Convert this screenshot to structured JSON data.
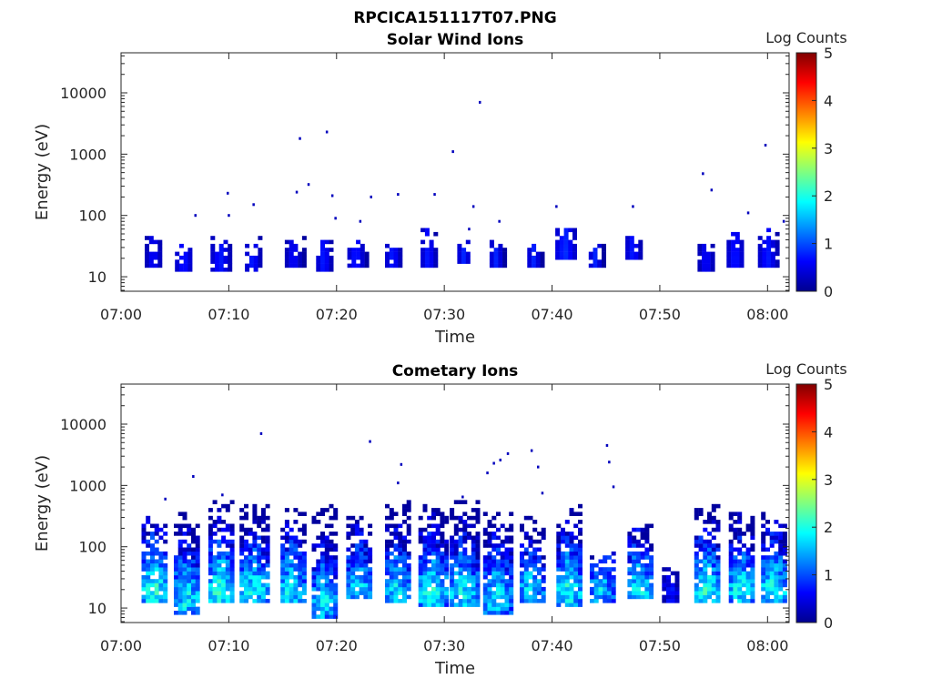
{
  "page": {
    "title": "RPCICA151117T07.PNG"
  },
  "chart_data": [
    {
      "type": "heatmap",
      "title": "Solar Wind Ions",
      "xlabel": "Time",
      "ylabel": "Energy (eV)",
      "x_ticks": [
        "07:00",
        "07:10",
        "07:20",
        "07:30",
        "07:40",
        "07:50",
        "08:00"
      ],
      "x_range_minutes": [
        0,
        62
      ],
      "y_ticks": [
        "10",
        "100",
        "1000",
        "10000"
      ],
      "y_scale": "log",
      "y_range": [
        5.8,
        45000
      ],
      "colorbar_label": "Log Counts",
      "colorbar_ticks": [
        "0",
        "1",
        "2",
        "3",
        "4",
        "5"
      ],
      "colorbar_range": [
        0,
        5
      ],
      "colormap": "jet",
      "blobs": [
        {
          "t": 3.0,
          "w": 1.6,
          "elo": 13,
          "ehi": 42,
          "peak": 0.7,
          "sp": 0.1,
          "n": 0.0
        },
        {
          "t": 5.8,
          "w": 1.6,
          "elo": 11,
          "ehi": 32,
          "peak": 0.8,
          "sp": 0.1,
          "n": 0.0
        },
        {
          "t": 9.2,
          "w": 1.8,
          "elo": 11,
          "ehi": 40,
          "peak": 0.8,
          "sp": 0.1,
          "n": 0.0
        },
        {
          "t": 12.2,
          "w": 1.4,
          "elo": 11,
          "ehi": 40,
          "peak": 0.8,
          "sp": 0.1,
          "n": 0.0
        },
        {
          "t": 16.0,
          "w": 1.6,
          "elo": 13,
          "ehi": 42,
          "peak": 0.7,
          "sp": 0.1,
          "n": 0.0
        },
        {
          "t": 18.8,
          "w": 1.4,
          "elo": 11,
          "ehi": 40,
          "peak": 0.8,
          "sp": 0.1,
          "n": 0.0
        },
        {
          "t": 21.8,
          "w": 1.6,
          "elo": 13,
          "ehi": 36,
          "peak": 0.8,
          "sp": 0.1,
          "n": 0.0
        },
        {
          "t": 25.2,
          "w": 1.4,
          "elo": 13,
          "ehi": 40,
          "peak": 0.8,
          "sp": 0.1,
          "n": 0.0
        },
        {
          "t": 28.5,
          "w": 1.4,
          "elo": 13,
          "ehi": 55,
          "peak": 0.8,
          "sp": 0.1,
          "n": 0.0
        },
        {
          "t": 31.8,
          "w": 1.2,
          "elo": 16,
          "ehi": 36,
          "peak": 0.8,
          "sp": 0.1,
          "n": 0.0
        },
        {
          "t": 34.8,
          "w": 1.2,
          "elo": 13,
          "ehi": 36,
          "peak": 0.8,
          "sp": 0.1,
          "n": 0.0
        },
        {
          "t": 38.3,
          "w": 1.2,
          "elo": 13,
          "ehi": 32,
          "peak": 0.8,
          "sp": 0.1,
          "n": 0.0
        },
        {
          "t": 41.2,
          "w": 1.8,
          "elo": 18,
          "ehi": 60,
          "peak": 0.9,
          "sp": 0.1,
          "n": 0.0
        },
        {
          "t": 44.0,
          "w": 1.2,
          "elo": 14,
          "ehi": 32,
          "peak": 0.8,
          "sp": 0.1,
          "n": 0.0
        },
        {
          "t": 47.5,
          "w": 1.4,
          "elo": 18,
          "ehi": 48,
          "peak": 0.8,
          "sp": 0.1,
          "n": 0.0
        },
        {
          "t": 54.3,
          "w": 1.6,
          "elo": 11,
          "ehi": 40,
          "peak": 0.7,
          "sp": 0.1,
          "n": 0.0
        },
        {
          "t": 57.0,
          "w": 1.6,
          "elo": 13,
          "ehi": 55,
          "peak": 0.8,
          "sp": 0.1,
          "n": 0.0
        },
        {
          "t": 60.0,
          "w": 1.8,
          "elo": 13,
          "ehi": 55,
          "peak": 0.8,
          "sp": 0.1,
          "n": 0.0
        }
      ],
      "specks": [
        {
          "t": 6.8,
          "e": 100
        },
        {
          "t": 9.8,
          "e": 230
        },
        {
          "t": 9.9,
          "e": 100
        },
        {
          "t": 12.2,
          "e": 150
        },
        {
          "t": 16.2,
          "e": 240
        },
        {
          "t": 16.5,
          "e": 1800
        },
        {
          "t": 17.3,
          "e": 320
        },
        {
          "t": 19.0,
          "e": 2300
        },
        {
          "t": 19.5,
          "e": 210
        },
        {
          "t": 19.8,
          "e": 90
        },
        {
          "t": 22.1,
          "e": 80
        },
        {
          "t": 23.1,
          "e": 200
        },
        {
          "t": 25.6,
          "e": 220
        },
        {
          "t": 29.0,
          "e": 220
        },
        {
          "t": 30.7,
          "e": 1100
        },
        {
          "t": 32.6,
          "e": 140
        },
        {
          "t": 33.2,
          "e": 7000
        },
        {
          "t": 32.2,
          "e": 60
        },
        {
          "t": 35.0,
          "e": 80
        },
        {
          "t": 40.3,
          "e": 140
        },
        {
          "t": 47.4,
          "e": 140
        },
        {
          "t": 53.9,
          "e": 480
        },
        {
          "t": 54.7,
          "e": 260
        },
        {
          "t": 58.1,
          "e": 110
        },
        {
          "t": 59.7,
          "e": 1400
        },
        {
          "t": 61.4,
          "e": 80
        }
      ]
    },
    {
      "type": "heatmap",
      "title": "Cometary Ions",
      "xlabel": "Time",
      "ylabel": "Energy (eV)",
      "x_ticks": [
        "07:00",
        "07:10",
        "07:20",
        "07:30",
        "07:40",
        "07:50",
        "08:00"
      ],
      "x_range_minutes": [
        0,
        62
      ],
      "y_ticks": [
        "10",
        "100",
        "1000",
        "10000"
      ],
      "y_scale": "log",
      "y_range": [
        5.8,
        45000
      ],
      "colorbar_label": "Log Counts",
      "colorbar_ticks": [
        "0",
        "1",
        "2",
        "3",
        "4",
        "5"
      ],
      "colorbar_range": [
        0,
        5
      ],
      "colormap": "jet",
      "blobs": [
        {
          "t": 3.0,
          "w": 2.2,
          "elo": 12,
          "ehi": 300,
          "peak": 2.1,
          "sp": 0.55,
          "n": 0.45
        },
        {
          "t": 6.0,
          "w": 2.2,
          "elo": 7,
          "ehi": 350,
          "peak": 1.9,
          "sp": 0.55,
          "n": 0.45
        },
        {
          "t": 9.2,
          "w": 2.2,
          "elo": 12,
          "ehi": 520,
          "peak": 2.1,
          "sp": 0.55,
          "n": 0.45
        },
        {
          "t": 12.3,
          "w": 2.6,
          "elo": 12,
          "ehi": 500,
          "peak": 1.9,
          "sp": 0.55,
          "n": 0.45
        },
        {
          "t": 15.8,
          "w": 2.0,
          "elo": 12,
          "ehi": 400,
          "peak": 1.9,
          "sp": 0.55,
          "n": 0.45
        },
        {
          "t": 18.8,
          "w": 2.2,
          "elo": 6,
          "ehi": 450,
          "peak": 1.8,
          "sp": 0.55,
          "n": 0.45
        },
        {
          "t": 22.0,
          "w": 2.2,
          "elo": 14,
          "ehi": 320,
          "peak": 1.8,
          "sp": 0.55,
          "n": 0.45
        },
        {
          "t": 25.6,
          "w": 2.2,
          "elo": 12,
          "ehi": 520,
          "peak": 1.8,
          "sp": 0.55,
          "n": 0.45
        },
        {
          "t": 28.8,
          "w": 2.4,
          "elo": 10,
          "ehi": 450,
          "peak": 2.0,
          "sp": 0.55,
          "n": 0.45
        },
        {
          "t": 31.7,
          "w": 2.4,
          "elo": 10,
          "ehi": 550,
          "peak": 1.9,
          "sp": 0.55,
          "n": 0.45
        },
        {
          "t": 34.8,
          "w": 2.4,
          "elo": 7,
          "ehi": 360,
          "peak": 1.9,
          "sp": 0.55,
          "n": 0.45
        },
        {
          "t": 38.0,
          "w": 2.0,
          "elo": 12,
          "ehi": 300,
          "peak": 1.8,
          "sp": 0.55,
          "n": 0.45
        },
        {
          "t": 41.5,
          "w": 2.2,
          "elo": 10,
          "ehi": 450,
          "peak": 2.0,
          "sp": 0.55,
          "n": 0.45
        },
        {
          "t": 44.5,
          "w": 2.0,
          "elo": 12,
          "ehi": 80,
          "peak": 1.7,
          "sp": 0.55,
          "n": 0.45
        },
        {
          "t": 48.0,
          "w": 2.0,
          "elo": 13,
          "ehi": 230,
          "peak": 1.9,
          "sp": 0.55,
          "n": 0.45
        },
        {
          "t": 51.0,
          "w": 1.6,
          "elo": 12,
          "ehi": 45,
          "peak": 0.8,
          "sp": 0.3,
          "n": 0.2
        },
        {
          "t": 54.3,
          "w": 2.2,
          "elo": 12,
          "ehi": 480,
          "peak": 2.0,
          "sp": 0.55,
          "n": 0.45
        },
        {
          "t": 57.5,
          "w": 2.2,
          "elo": 12,
          "ehi": 350,
          "peak": 1.9,
          "sp": 0.55,
          "n": 0.45
        },
        {
          "t": 60.5,
          "w": 2.2,
          "elo": 12,
          "ehi": 380,
          "peak": 2.0,
          "sp": 0.55,
          "n": 0.45
        }
      ],
      "specks": [
        {
          "t": 4.0,
          "e": 600
        },
        {
          "t": 6.6,
          "e": 1400
        },
        {
          "t": 9.3,
          "e": 700
        },
        {
          "t": 12.9,
          "e": 7000
        },
        {
          "t": 23.0,
          "e": 5200
        },
        {
          "t": 25.6,
          "e": 1100
        },
        {
          "t": 25.9,
          "e": 2200
        },
        {
          "t": 33.9,
          "e": 1600
        },
        {
          "t": 34.5,
          "e": 2300
        },
        {
          "t": 35.1,
          "e": 2600
        },
        {
          "t": 35.8,
          "e": 3300
        },
        {
          "t": 38.0,
          "e": 3700
        },
        {
          "t": 38.6,
          "e": 2000
        },
        {
          "t": 45.0,
          "e": 4500
        },
        {
          "t": 45.2,
          "e": 2400
        },
        {
          "t": 45.6,
          "e": 950
        },
        {
          "t": 39.0,
          "e": 750
        },
        {
          "t": 31.6,
          "e": 650
        }
      ]
    }
  ]
}
